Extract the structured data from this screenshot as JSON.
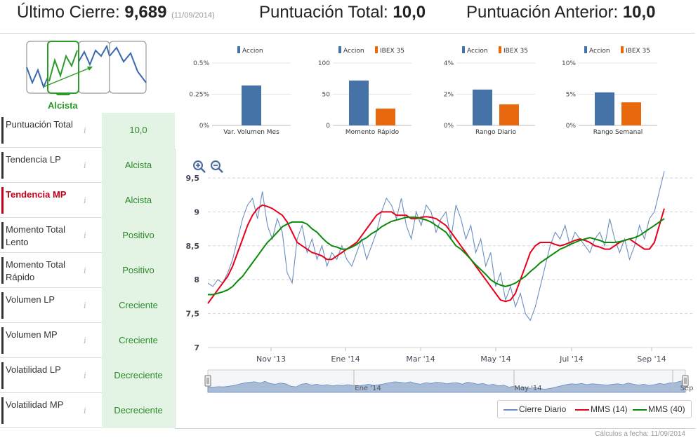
{
  "header": {
    "last_close_label": "Último Cierre:",
    "last_close_value": "9,689",
    "last_close_date": "(11/09/2014)",
    "total_score_label": "Puntuación Total:",
    "total_score_value": "10,0",
    "previous_score_label": "Puntuación Anterior:",
    "previous_score_value": "10,0"
  },
  "trend": {
    "selected_label": "Alcista"
  },
  "criteria": [
    {
      "name": "Puntuación Total",
      "value": "10,0",
      "active": false
    },
    {
      "name": "Tendencia LP",
      "value": "Alcista",
      "active": false
    },
    {
      "name": "Tendencia MP",
      "value": "Alcista",
      "active": true
    },
    {
      "name": "Momento Total Lento",
      "value": "Positivo",
      "active": false
    },
    {
      "name": "Momento Total Rápido",
      "value": "Positivo",
      "active": false
    },
    {
      "name": "Volumen LP",
      "value": "Creciente",
      "active": false
    },
    {
      "name": "Volumen MP",
      "value": "Creciente",
      "active": false
    },
    {
      "name": "Volatilidad LP",
      "value": "Decreciente",
      "active": false
    },
    {
      "name": "Volatilidad MP",
      "value": "Decreciente",
      "active": false
    }
  ],
  "info_glyph": "i",
  "colors": {
    "accion": "#4572a7",
    "ibex": "#e8680e",
    "green": "#2a9a2a",
    "red": "#c0001a",
    "ma14": "#e8001c",
    "ma40": "#0a8a0a",
    "daily": "#6a8ec0"
  },
  "chart_data": [
    {
      "type": "bar",
      "title": "Var. Volumen Mes",
      "legend": [
        "Accion"
      ],
      "yticks": [
        "0.5%",
        "0.25%",
        "0%"
      ],
      "ylim": [
        0,
        0.5
      ],
      "series": [
        {
          "name": "Accion",
          "values": [
            0.32
          ]
        }
      ]
    },
    {
      "type": "bar",
      "title": "Momento Rápido",
      "legend": [
        "Accion",
        "IBEX 35"
      ],
      "yticks": [
        "100",
        "50",
        "0"
      ],
      "ylim": [
        0,
        100
      ],
      "series": [
        {
          "name": "Accion",
          "values": [
            72
          ]
        },
        {
          "name": "IBEX 35",
          "values": [
            27
          ]
        }
      ]
    },
    {
      "type": "bar",
      "title": "Rango Diario",
      "legend": [
        "Accion",
        "IBEX 35"
      ],
      "yticks": [
        "4%",
        "2%",
        "0%"
      ],
      "ylim": [
        0,
        4
      ],
      "series": [
        {
          "name": "Accion",
          "values": [
            2.3
          ]
        },
        {
          "name": "IBEX 35",
          "values": [
            1.35
          ]
        }
      ]
    },
    {
      "type": "bar",
      "title": "Rango Semanal",
      "legend": [
        "Accion",
        "IBEX 35"
      ],
      "yticks": [
        "10%",
        "5%",
        "0%"
      ],
      "ylim": [
        0,
        10
      ],
      "series": [
        {
          "name": "Accion",
          "values": [
            5.3
          ]
        },
        {
          "name": "IBEX 35",
          "values": [
            3.7
          ]
        }
      ]
    },
    {
      "type": "line",
      "title": "",
      "ylim": [
        7,
        9.5
      ],
      "yticks": [
        "9,5",
        "9",
        "8,5",
        "8",
        "7,5",
        "7"
      ],
      "xticks": [
        "Nov '13",
        "Ene '14",
        "Mar '14",
        "May '14",
        "Jul '14",
        "Sep '14"
      ],
      "navigator_ticks": [
        "Ene '14",
        "May '14",
        "Sep"
      ],
      "series": [
        {
          "name": "Cierre Diario",
          "values": [
            7.95,
            7.9,
            8.0,
            7.95,
            8.1,
            8.3,
            8.6,
            8.9,
            9.1,
            9.2,
            8.9,
            9.3,
            8.8,
            8.6,
            8.9,
            8.7,
            8.1,
            7.95,
            8.6,
            8.8,
            8.4,
            8.6,
            8.3,
            8.5,
            8.2,
            8.4,
            8.3,
            8.5,
            8.3,
            8.2,
            8.4,
            8.6,
            8.3,
            8.5,
            8.7,
            9.0,
            9.2,
            9.1,
            8.9,
            9.2,
            8.8,
            8.6,
            9.0,
            8.8,
            9.1,
            9.0,
            8.7,
            8.9,
            9.0,
            8.6,
            9.1,
            8.9,
            8.6,
            8.8,
            8.4,
            8.6,
            8.2,
            8.4,
            7.9,
            8.1,
            7.7,
            7.9,
            7.6,
            7.8,
            7.5,
            7.4,
            7.6,
            7.9,
            8.2,
            8.5,
            8.7,
            8.6,
            8.8,
            8.5,
            8.7,
            8.6,
            8.5,
            8.4,
            8.6,
            8.7,
            8.5,
            8.9,
            8.6,
            8.4,
            8.6,
            8.3,
            8.5,
            8.8,
            8.6,
            8.9,
            9.0,
            9.3,
            9.6
          ]
        },
        {
          "name": "MMS (14)",
          "values": [
            7.65,
            7.75,
            7.85,
            7.95,
            8.05,
            8.2,
            8.4,
            8.6,
            8.8,
            8.95,
            9.05,
            9.1,
            9.08,
            9.05,
            9.0,
            8.95,
            8.85,
            8.7,
            8.55,
            8.5,
            8.45,
            8.4,
            8.38,
            8.35,
            8.3,
            8.3,
            8.35,
            8.4,
            8.45,
            8.5,
            8.55,
            8.65,
            8.75,
            8.85,
            8.95,
            9.0,
            9.0,
            9.0,
            8.95,
            8.95,
            8.95,
            8.9,
            8.9,
            8.92,
            8.93,
            8.92,
            8.9,
            8.85,
            8.8,
            8.7,
            8.6,
            8.5,
            8.4,
            8.3,
            8.2,
            8.1,
            8.0,
            7.9,
            7.8,
            7.7,
            7.68,
            7.7,
            7.8,
            8.0,
            8.2,
            8.4,
            8.5,
            8.55,
            8.55,
            8.55,
            8.52,
            8.5,
            8.52,
            8.55,
            8.58,
            8.6,
            8.58,
            8.55,
            8.5,
            8.48,
            8.45,
            8.45,
            8.5,
            8.55,
            8.58,
            8.6,
            8.55,
            8.5,
            8.45,
            8.45,
            8.55,
            8.8,
            9.05
          ]
        },
        {
          "name": "MMS (40)",
          "values": [
            7.78,
            7.78,
            7.8,
            7.82,
            7.85,
            7.9,
            7.98,
            8.05,
            8.15,
            8.25,
            8.35,
            8.45,
            8.55,
            8.62,
            8.7,
            8.78,
            8.82,
            8.85,
            8.85,
            8.85,
            8.82,
            8.75,
            8.7,
            8.62,
            8.55,
            8.5,
            8.48,
            8.45,
            8.45,
            8.48,
            8.52,
            8.58,
            8.62,
            8.68,
            8.72,
            8.78,
            8.82,
            8.86,
            8.88,
            8.9,
            8.92,
            8.92,
            8.92,
            8.9,
            8.88,
            8.85,
            8.8,
            8.75,
            8.7,
            8.6,
            8.5,
            8.45,
            8.38,
            8.3,
            8.22,
            8.15,
            8.08,
            8.0,
            7.95,
            7.92,
            7.9,
            7.92,
            7.95,
            8.0,
            8.05,
            8.12,
            8.18,
            8.25,
            8.3,
            8.35,
            8.4,
            8.45,
            8.48,
            8.52,
            8.55,
            8.58,
            8.6,
            8.62,
            8.6,
            8.58,
            8.55,
            8.55,
            8.55,
            8.56,
            8.58,
            8.6,
            8.62,
            8.65,
            8.7,
            8.75,
            8.8,
            8.85,
            8.9
          ]
        }
      ]
    }
  ],
  "legend_labels": [
    "Cierre Diario",
    "MMS (14)",
    "MMS (40)"
  ],
  "footer": {
    "calc_date": "Cálculos a fecha: 11/09/2014"
  }
}
